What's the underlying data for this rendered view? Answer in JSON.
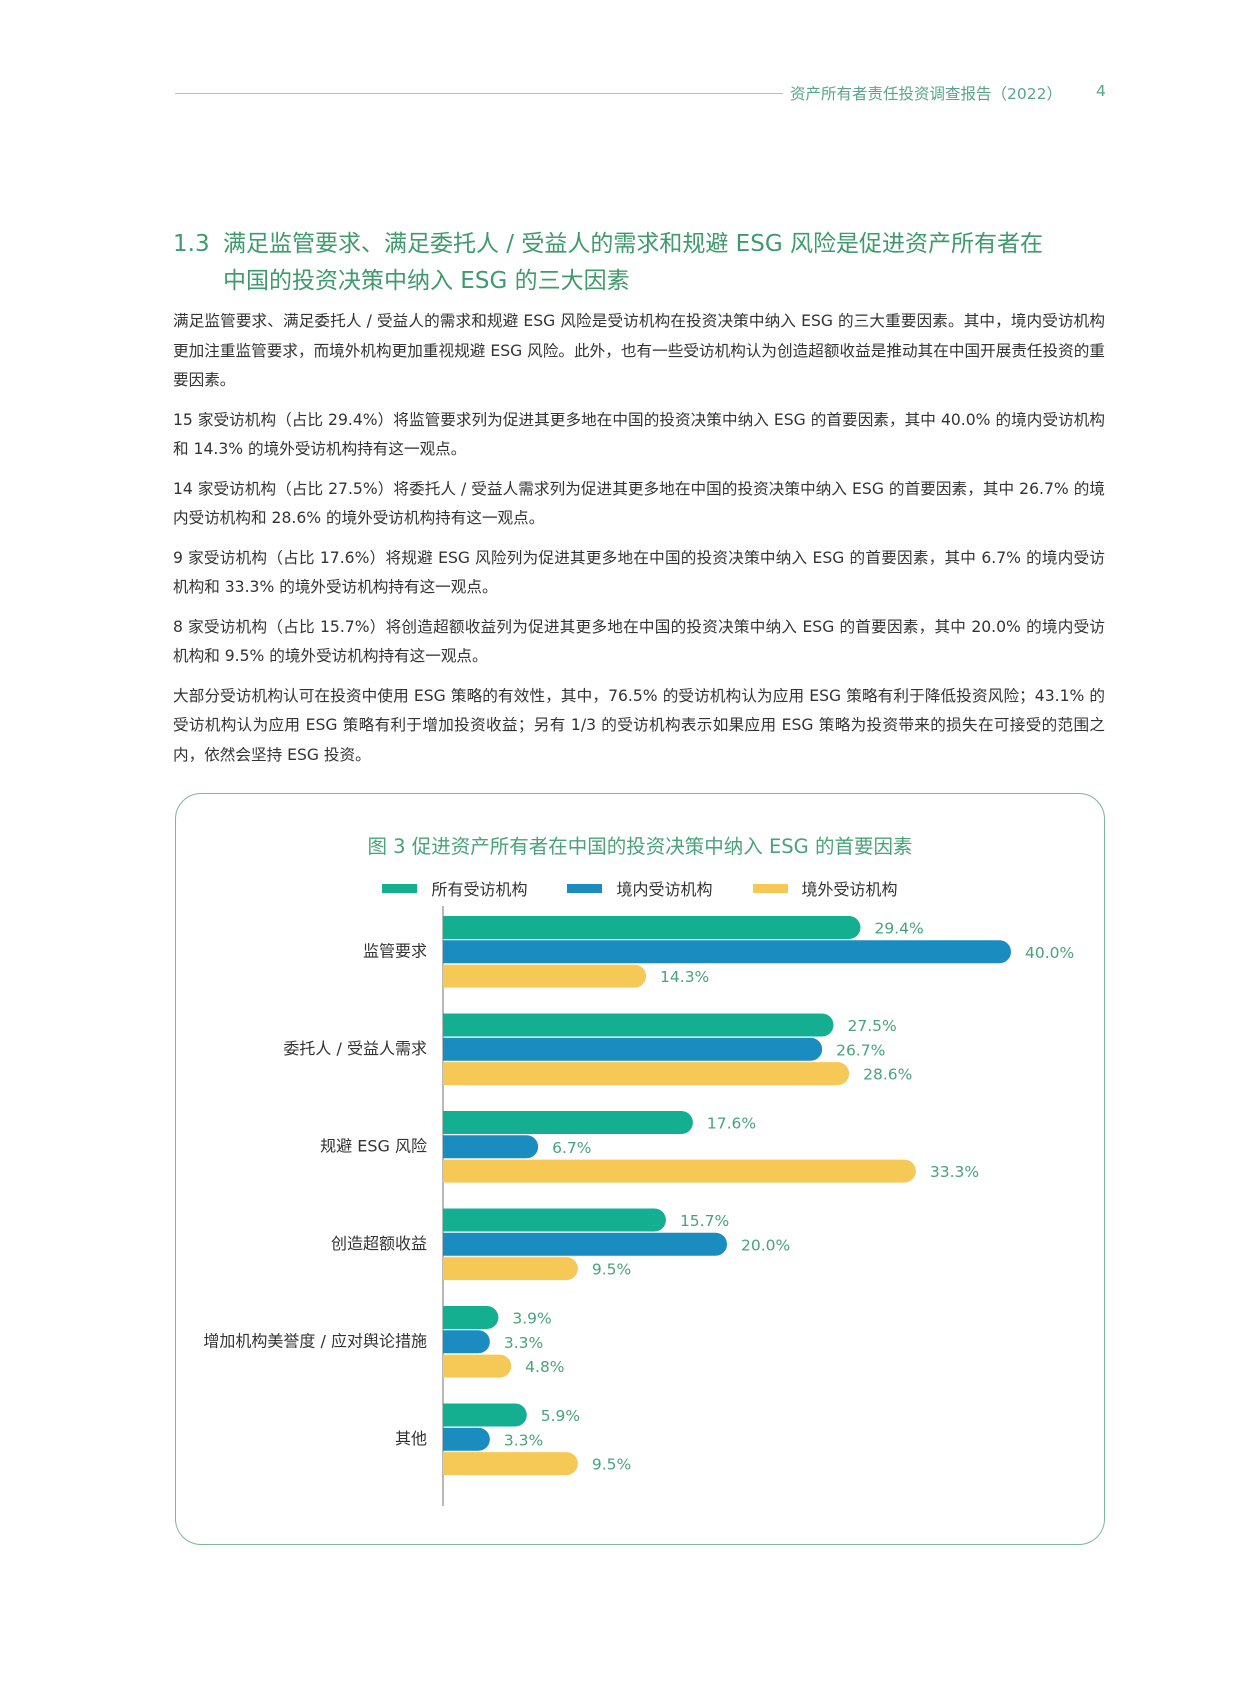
{
  "header": {
    "title": "资产所有者责任投资调查报告（2022）",
    "page": "4"
  },
  "section": {
    "number": "1.3",
    "title_line1": "满足监管要求、满足委托人 / 受益人的需求和规避 ESG 风险是促进资产所有者在",
    "title_line2": "中国的投资决策中纳入 ESG 的三大因素"
  },
  "paragraphs": [
    "满足监管要求、满足委托人 / 受益人的需求和规避 ESG 风险是受访机构在投资决策中纳入 ESG 的三大重要因素。其中，境内受访机构更加注重监管要求，而境外机构更加重视规避 ESG 风险。此外，也有一些受访机构认为创造超额收益是推动其在中国开展责任投资的重要因素。",
    "15 家受访机构（占比 29.4%）将监管要求列为促进其更多地在中国的投资决策中纳入 ESG 的首要因素，其中 40.0% 的境内受访机构和 14.3% 的境外受访机构持有这一观点。",
    "14 家受访机构（占比 27.5%）将委托人 / 受益人需求列为促进其更多地在中国的投资决策中纳入 ESG 的首要因素，其中 26.7% 的境内受访机构和 28.6% 的境外受访机构持有这一观点。",
    "9 家受访机构（占比 17.6%）将规避 ESG 风险列为促进其更多地在中国的投资决策中纳入 ESG 的首要因素，其中 6.7% 的境内受访机构和 33.3% 的境外受访机构持有这一观点。",
    "8 家受访机构（占比 15.7%）将创造超额收益列为促进其更多地在中国的投资决策中纳入 ESG 的首要因素，其中 20.0% 的境内受访机构和 9.5% 的境外受访机构持有这一观点。",
    "大部分受访机构认可在投资中使用 ESG 策略的有效性，其中，76.5% 的受访机构认为应用 ESG 策略有利于降低投资风险；43.1% 的受访机构认为应用 ESG 策略有利于增加投资收益；另有 1/3 的受访机构表示如果应用 ESG 策略为投资带来的损失在可接受的范围之内，依然会坚持 ESG 投资。"
  ],
  "chart_data": {
    "type": "bar",
    "orientation": "horizontal",
    "title": "图 3  促进资产所有者在中国的投资决策中纳入 ESG 的首要因素",
    "categories": [
      "监管要求",
      "委托人 / 受益人需求",
      "规避 ESG 风险",
      "创造超额收益",
      "增加机构美誉度 / 应对舆论措施",
      "其他"
    ],
    "series": [
      {
        "name": "所有受访机构",
        "color": "#14ae91",
        "values": [
          29.4,
          27.5,
          17.6,
          15.7,
          3.9,
          5.9
        ]
      },
      {
        "name": "境内受访机构",
        "color": "#1a8cc0",
        "values": [
          40.0,
          26.7,
          6.7,
          20.0,
          3.3,
          3.3
        ]
      },
      {
        "name": "境外受访机构",
        "color": "#f6c957",
        "values": [
          14.3,
          28.6,
          33.3,
          9.5,
          4.8,
          9.5
        ]
      }
    ],
    "value_suffix": "%",
    "label_color": "#4aa27c",
    "xlim": [
      0,
      40
    ],
    "grid": false,
    "legend": "top-center"
  }
}
